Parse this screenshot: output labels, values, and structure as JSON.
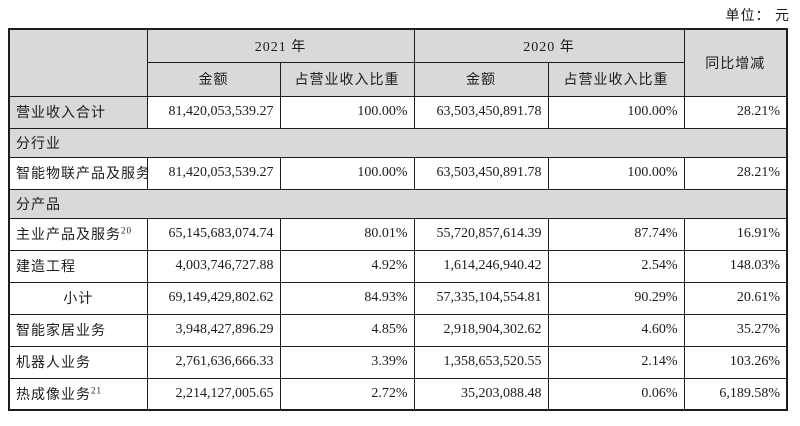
{
  "unit_label": "单位： 元",
  "table": {
    "header": {
      "year_2021": "2021 年",
      "year_2020": "2020 年",
      "amount": "金额",
      "ratio": "占营业收入比重",
      "yoy": "同比增减"
    },
    "rows": [
      {
        "type": "data",
        "label": "营业收入合计",
        "label_bg": "gray",
        "values": [
          "81,420,053,539.27",
          "100.00%",
          "63,503,450,891.78",
          "100.00%",
          "28.21%"
        ]
      },
      {
        "type": "section",
        "label": "分行业"
      },
      {
        "type": "data",
        "label": "智能物联产品及服务",
        "values": [
          "81,420,053,539.27",
          "100.00%",
          "63,503,450,891.78",
          "100.00%",
          "28.21%"
        ]
      },
      {
        "type": "section",
        "label": "分产品"
      },
      {
        "type": "data",
        "label": "主业产品及服务",
        "sup": "20",
        "values": [
          "65,145,683,074.74",
          "80.01%",
          "55,720,857,614.39",
          "87.74%",
          "16.91%"
        ]
      },
      {
        "type": "data",
        "label": "建造工程",
        "values": [
          "4,003,746,727.88",
          "4.92%",
          "1,614,246,940.42",
          "2.54%",
          "148.03%"
        ]
      },
      {
        "type": "data",
        "label": "小计",
        "align": "center",
        "values": [
          "69,149,429,802.62",
          "84.93%",
          "57,335,104,554.81",
          "90.29%",
          "20.61%"
        ]
      },
      {
        "type": "data",
        "label": "智能家居业务",
        "values": [
          "3,948,427,896.29",
          "4.85%",
          "2,918,904,302.62",
          "4.60%",
          "35.27%"
        ]
      },
      {
        "type": "data",
        "label": "机器人业务",
        "values": [
          "2,761,636,666.33",
          "3.39%",
          "1,358,653,520.55",
          "2.14%",
          "103.26%"
        ]
      },
      {
        "type": "data",
        "label": "热成像业务",
        "sup": "21",
        "values": [
          "2,214,127,005.65",
          "2.72%",
          "35,203,088.48",
          "0.06%",
          "6,189.58%"
        ]
      }
    ]
  }
}
